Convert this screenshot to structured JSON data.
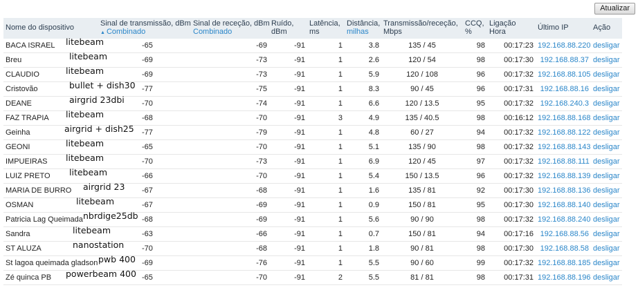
{
  "toolbar": {
    "refresh_label": "Atualizar"
  },
  "columns": {
    "device_name": "Nome do dispositivo",
    "tx_signal": "Sinal de transmissão, dBm",
    "tx_signal_sub": "Combinado",
    "rx_signal": "Sinal de receção, dBm",
    "rx_signal_sub": "Combinado",
    "noise_1": "Ruído,",
    "noise_2": "dBm",
    "latency_1": "Latência,",
    "latency_2": "ms",
    "distance_1": "Distância,",
    "distance_2": "milhas",
    "txrx_1": "Transmissão/receção,",
    "txrx_2": "Mbps",
    "ccq_1": "CCQ,",
    "ccq_2": "%",
    "connection_1": "Ligação",
    "connection_2": "Hora",
    "last_ip": "Último IP",
    "action": "Ação"
  },
  "rows": [
    {
      "name": "BACA ISRAEL",
      "note": "litebeam",
      "tx": "-65",
      "rx": "-69",
      "noise": "-91",
      "latency": "1",
      "distance": "3.8",
      "txrx": "135 / 45",
      "ccq": "98",
      "time": "00:17:23",
      "ip": "192.168.88.220",
      "action": "desligar"
    },
    {
      "name": "Breu",
      "note": "litebeam",
      "tx": "-69",
      "rx": "-73",
      "noise": "-91",
      "latency": "1",
      "distance": "2.6",
      "txrx": "120 / 54",
      "ccq": "98",
      "time": "00:17:30",
      "ip": "192.168.88.37",
      "action": "desligar"
    },
    {
      "name": "CLAUDIO",
      "note": "litebeam",
      "tx": "-69",
      "rx": "-73",
      "noise": "-91",
      "latency": "1",
      "distance": "5.9",
      "txrx": "120 / 108",
      "ccq": "96",
      "time": "00:17:32",
      "ip": "192.168.88.105",
      "action": "desligar"
    },
    {
      "name": "Cristovão",
      "note": "bullet + dish30",
      "tx": "-77",
      "rx": "-75",
      "noise": "-91",
      "latency": "1",
      "distance": "8.3",
      "txrx": "90 / 45",
      "ccq": "96",
      "time": "00:17:31",
      "ip": "192.168.88.16",
      "action": "desligar"
    },
    {
      "name": "DEANE",
      "note": "airgrid 23dbi",
      "tx": "-70",
      "rx": "-74",
      "noise": "-91",
      "latency": "1",
      "distance": "6.6",
      "txrx": "120 / 13.5",
      "ccq": "95",
      "time": "00:17:32",
      "ip": "192.168.240.3",
      "action": "desligar"
    },
    {
      "name": "FAZ TRAPIA",
      "note": "litebeam",
      "tx": "-68",
      "rx": "-70",
      "noise": "-91",
      "latency": "3",
      "distance": "4.9",
      "txrx": "135 / 40.5",
      "ccq": "98",
      "time": "00:16:12",
      "ip": "192.168.88.168",
      "action": "desligar"
    },
    {
      "name": "Geinha",
      "note": "airgrid + dish25",
      "tx": "-77",
      "rx": "-79",
      "noise": "-91",
      "latency": "1",
      "distance": "4.8",
      "txrx": "60 / 27",
      "ccq": "94",
      "time": "00:17:32",
      "ip": "192.168.88.122",
      "action": "desligar"
    },
    {
      "name": "GEONI",
      "note": "litebeam",
      "tx": "-65",
      "rx": "-70",
      "noise": "-91",
      "latency": "1",
      "distance": "5.1",
      "txrx": "135 / 90",
      "ccq": "98",
      "time": "00:17:32",
      "ip": "192.168.88.143",
      "action": "desligar"
    },
    {
      "name": "IMPUEIRAS",
      "note": "litebeam",
      "tx": "-70",
      "rx": "-73",
      "noise": "-91",
      "latency": "1",
      "distance": "6.9",
      "txrx": "120 / 45",
      "ccq": "97",
      "time": "00:17:32",
      "ip": "192.168.88.111",
      "action": "desligar"
    },
    {
      "name": "LUIZ PRETO",
      "note": "litebeam",
      "tx": "-66",
      "rx": "-70",
      "noise": "-91",
      "latency": "1",
      "distance": "5.4",
      "txrx": "150 / 13.5",
      "ccq": "96",
      "time": "00:17:32",
      "ip": "192.168.88.139",
      "action": "desligar"
    },
    {
      "name": "MARIA DE BURRO",
      "note": "airgrid 23",
      "tx": "-67",
      "rx": "-68",
      "noise": "-91",
      "latency": "1",
      "distance": "1.6",
      "txrx": "135 / 81",
      "ccq": "92",
      "time": "00:17:30",
      "ip": "192.168.88.136",
      "action": "desligar"
    },
    {
      "name": "OSMAN",
      "note": "litebeam",
      "tx": "-67",
      "rx": "-69",
      "noise": "-91",
      "latency": "1",
      "distance": "0.9",
      "txrx": "150 / 81",
      "ccq": "95",
      "time": "00:17:30",
      "ip": "192.168.88.140",
      "action": "desligar"
    },
    {
      "name": "Patricia Lag Queimada",
      "note": "nbrdige25db",
      "tx": "-68",
      "rx": "-69",
      "noise": "-91",
      "latency": "1",
      "distance": "5.6",
      "txrx": "90 / 90",
      "ccq": "98",
      "time": "00:17:32",
      "ip": "192.168.88.240",
      "action": "desligar"
    },
    {
      "name": "Sandra",
      "note": "litebeam",
      "tx": "-63",
      "rx": "-66",
      "noise": "-91",
      "latency": "1",
      "distance": "0.7",
      "txrx": "150 / 81",
      "ccq": "94",
      "time": "00:17:16",
      "ip": "192.168.88.56",
      "action": "desligar"
    },
    {
      "name": "ST ALUZA",
      "note": "nanostation",
      "tx": "-70",
      "rx": "-68",
      "noise": "-91",
      "latency": "1",
      "distance": "1.8",
      "txrx": "90 / 81",
      "ccq": "98",
      "time": "00:17:30",
      "ip": "192.168.88.58",
      "action": "desligar"
    },
    {
      "name": "St lagoa queimada gladson",
      "note": "pwb 400",
      "tx": "-69",
      "rx": "-76",
      "noise": "-91",
      "latency": "1",
      "distance": "5.5",
      "txrx": "90 / 60",
      "ccq": "99",
      "time": "00:17:32",
      "ip": "192.168.88.185",
      "action": "desligar"
    },
    {
      "name": "Zé quinca PB",
      "note": "powerbeam 400",
      "tx": "-65",
      "rx": "-70",
      "noise": "-91",
      "latency": "2",
      "distance": "5.5",
      "txrx": "81 / 81",
      "ccq": "98",
      "time": "00:17:31",
      "ip": "192.168.88.196",
      "action": "desligar"
    }
  ]
}
